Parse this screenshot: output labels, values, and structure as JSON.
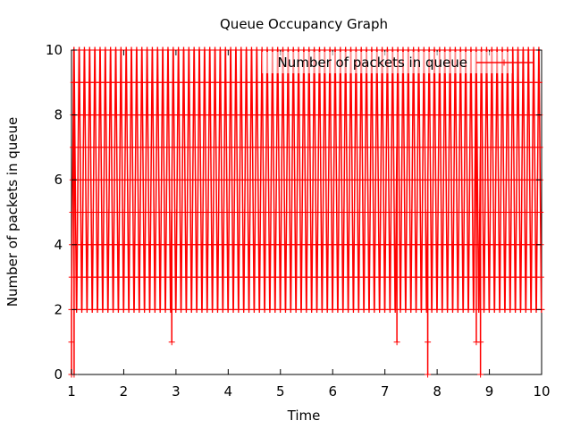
{
  "chart_data": {
    "type": "line",
    "title": "Queue Occupancy Graph",
    "xlabel": "Time",
    "ylabel": "Number of packets in queue",
    "xlim": [
      1,
      10
    ],
    "ylim": [
      0,
      10
    ],
    "x_ticks": [
      "1",
      "2",
      "3",
      "4",
      "5",
      "6",
      "7",
      "8",
      "9",
      "10"
    ],
    "y_ticks": [
      "0",
      "2",
      "4",
      "6",
      "8",
      "10"
    ],
    "grid": false,
    "legend_position": "top-right",
    "series_color": "#ff0000",
    "series": [
      {
        "name": "Number of packets in queue",
        "marker": "plus",
        "cycle": {
          "start": 1.0,
          "end": 10.0,
          "period": 0.1,
          "values": [
            2,
            3,
            4,
            5,
            6,
            7,
            8,
            9,
            10,
            10,
            9,
            8,
            7,
            6,
            5,
            4,
            3,
            2
          ]
        },
        "dips": [
          {
            "x": 1.0,
            "values": [
              0,
              1,
              0
            ]
          },
          {
            "x": 1.05,
            "values": [
              0
            ]
          },
          {
            "x": 2.92,
            "values": [
              1
            ]
          },
          {
            "x": 7.23,
            "values": [
              1
            ]
          },
          {
            "x": 7.82,
            "values": [
              0,
              1
            ]
          },
          {
            "x": 8.75,
            "values": [
              1
            ]
          },
          {
            "x": 8.83,
            "values": [
              0,
              1
            ]
          }
        ]
      }
    ]
  }
}
